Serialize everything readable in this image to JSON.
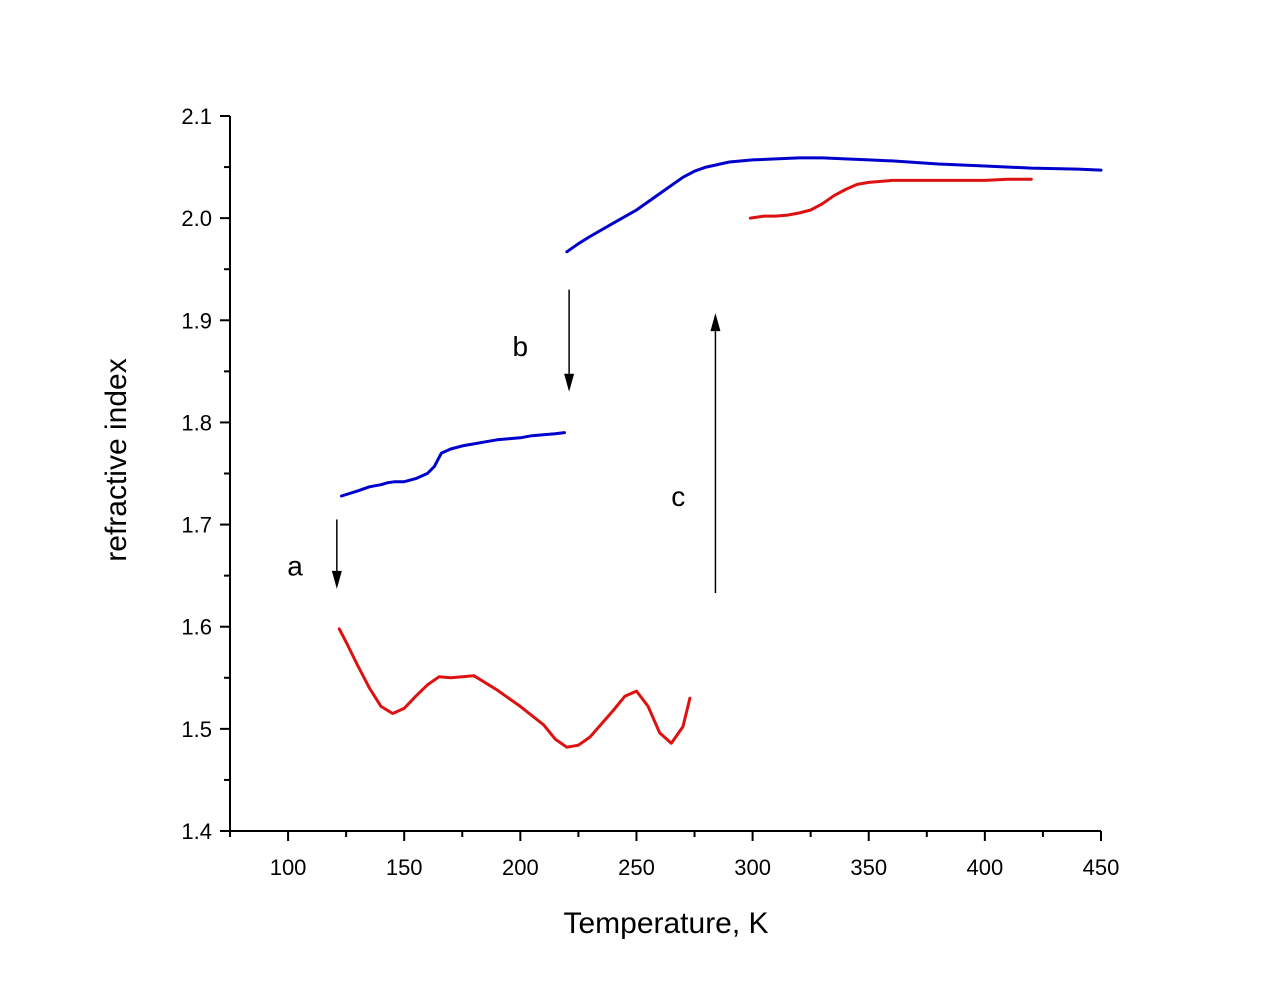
{
  "chart_data": {
    "type": "line",
    "title": "",
    "xlabel": "Temperature, K",
    "ylabel": "refractive index",
    "xlim": [
      75,
      450
    ],
    "ylim": [
      1.4,
      2.1
    ],
    "x_ticks": [
      100,
      150,
      200,
      250,
      300,
      350,
      400,
      450
    ],
    "y_ticks": [
      1.4,
      1.5,
      1.6,
      1.7,
      1.8,
      1.9,
      2.0,
      2.1
    ],
    "x_tick_labels": [
      "100",
      "150",
      "200",
      "250",
      "300",
      "350",
      "400",
      "450"
    ],
    "y_tick_labels": [
      "1.4",
      "1.5",
      "1.6",
      "1.7",
      "1.8",
      "1.9",
      "2.0",
      "2.1"
    ],
    "grid": false,
    "series": [
      {
        "color": "#0000cc",
        "x": [
          123,
          130,
          135,
          140,
          143,
          146,
          150,
          155,
          160,
          163,
          166,
          170,
          175,
          180,
          185,
          190,
          195,
          200,
          205,
          210,
          215,
          219
        ],
        "y": [
          1.728,
          1.733,
          1.737,
          1.739,
          1.741,
          1.742,
          1.742,
          1.745,
          1.75,
          1.757,
          1.77,
          1.774,
          1.777,
          1.779,
          1.781,
          1.783,
          1.784,
          1.785,
          1.787,
          1.788,
          1.789,
          1.79
        ]
      },
      {
        "color": "#0000cc",
        "x": [
          220,
          225,
          230,
          240,
          250,
          260,
          270,
          275,
          280,
          290,
          300,
          310,
          320,
          330,
          340,
          350,
          360,
          380,
          400,
          420,
          440,
          450
        ],
        "y": [
          1.967,
          1.975,
          1.982,
          1.995,
          2.008,
          2.024,
          2.04,
          2.046,
          2.05,
          2.055,
          2.057,
          2.058,
          2.059,
          2.059,
          2.058,
          2.057,
          2.056,
          2.053,
          2.051,
          2.049,
          2.048,
          2.047
        ]
      },
      {
        "color": "#dd1111",
        "x": [
          122,
          125,
          130,
          135,
          140,
          145,
          150,
          155,
          160,
          165,
          170,
          175,
          180,
          190,
          200,
          210,
          215,
          220,
          225,
          230,
          235,
          240,
          245,
          250,
          255,
          260,
          265,
          270,
          273
        ],
        "y": [
          1.598,
          1.585,
          1.562,
          1.54,
          1.522,
          1.515,
          1.52,
          1.532,
          1.543,
          1.551,
          1.55,
          1.551,
          1.552,
          1.538,
          1.522,
          1.504,
          1.49,
          1.482,
          1.484,
          1.492,
          1.505,
          1.518,
          1.532,
          1.537,
          1.522,
          1.496,
          1.486,
          1.502,
          1.53
        ]
      },
      {
        "color": "#dd1111",
        "x": [
          299,
          305,
          310,
          315,
          320,
          325,
          330,
          335,
          340,
          345,
          350,
          360,
          370,
          380,
          390,
          400,
          410,
          420
        ],
        "y": [
          2.0,
          2.002,
          2.002,
          2.003,
          2.005,
          2.008,
          2.014,
          2.022,
          2.028,
          2.033,
          2.035,
          2.037,
          2.037,
          2.037,
          2.037,
          2.037,
          2.038,
          2.038
        ]
      }
    ],
    "annotations": [
      {
        "label": "a",
        "arrow_x": 121,
        "arrow_from_y": 1.705,
        "arrow_to_y": 1.637,
        "label_x": 103,
        "label_y": 1.66
      },
      {
        "label": "b",
        "arrow_x": 221,
        "arrow_from_y": 1.93,
        "arrow_to_y": 1.83,
        "label_x": 200,
        "label_y": 1.875
      },
      {
        "label": "c",
        "arrow_x": 284,
        "arrow_from_y": 1.633,
        "arrow_to_y": 1.907,
        "label_x": 268,
        "label_y": 1.728
      }
    ]
  }
}
